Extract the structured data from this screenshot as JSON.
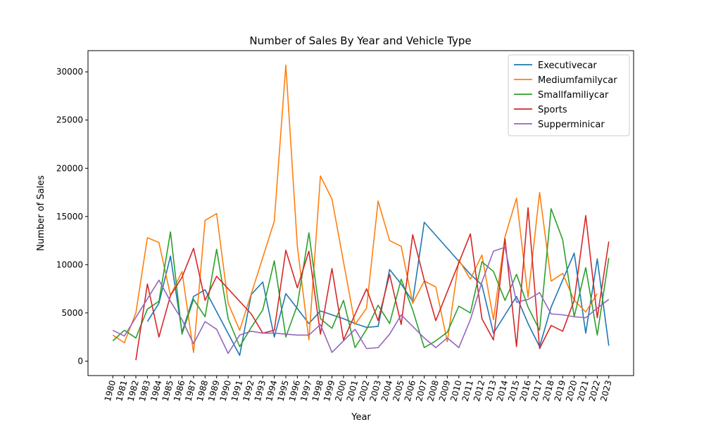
{
  "chart_data": {
    "type": "line",
    "title": "Number of Sales By Year and Vehicle Type",
    "xlabel": "Year",
    "ylabel": "Number of Sales",
    "ylim": [
      -1500,
      32200
    ],
    "yticks": [
      0,
      5000,
      10000,
      15000,
      20000,
      25000,
      30000
    ],
    "legend_position": "top-right",
    "grid": false,
    "x": [
      1980,
      1981,
      1982,
      1983,
      1984,
      1985,
      1986,
      1987,
      1988,
      1989,
      1990,
      1991,
      1992,
      1993,
      1994,
      1995,
      1996,
      1997,
      1998,
      1999,
      2000,
      2001,
      2002,
      2003,
      2004,
      2005,
      2006,
      2007,
      2008,
      2009,
      2010,
      2011,
      2012,
      2013,
      2014,
      2015,
      2016,
      2017,
      2018,
      2019,
      2020,
      2021,
      2022,
      2023
    ],
    "series": [
      {
        "name": "Executivecar",
        "color": "#1f77b4",
        "x": [
          1983,
          1984,
          1985,
          1986,
          1987,
          1988,
          1991,
          1992,
          1993,
          1994,
          1995,
          1997,
          1998,
          1999,
          2000,
          2001,
          2002,
          2003,
          2004,
          2005,
          2006,
          2007,
          2011,
          2012,
          2013,
          2014,
          2015,
          2016,
          2017,
          2018,
          2020,
          2021,
          2022,
          2023
        ],
        "values": [
          4100,
          6000,
          10900,
          3000,
          6700,
          7400,
          600,
          6900,
          8200,
          2500,
          7000,
          3900,
          5200,
          4800,
          4400,
          3900,
          3500,
          3600,
          9500,
          8000,
          6200,
          14400,
          9000,
          7900,
          2900,
          4800,
          6700,
          3900,
          1500,
          5600,
          11200,
          2900,
          10600,
          1600
        ]
      },
      {
        "name": "Mediumfamilycar",
        "color": "#ff7f0e",
        "x": [
          1980,
          1981,
          1982,
          1983,
          1984,
          1985,
          1986,
          1987,
          1988,
          1989,
          1990,
          1991,
          1994,
          1995,
          1996,
          1997,
          1998,
          1999,
          2001,
          2002,
          2003,
          2004,
          2005,
          2006,
          2007,
          2008,
          2009,
          2010,
          2011,
          2012,
          2013,
          2014,
          2015,
          2016,
          2017,
          2018,
          2019,
          2020,
          2021,
          2022
        ],
        "values": [
          2700,
          1900,
          5000,
          12800,
          12300,
          6800,
          9300,
          900,
          14600,
          15300,
          6000,
          3200,
          14500,
          30700,
          11900,
          2200,
          19200,
          16800,
          3800,
          5500,
          16600,
          12500,
          11900,
          6000,
          8300,
          7700,
          2000,
          10500,
          8500,
          11000,
          4300,
          12900,
          16900,
          6600,
          17500,
          8300,
          9100,
          6300,
          5100,
          7000
        ]
      },
      {
        "name": "Smallfamiliycar",
        "color": "#2ca02c",
        "x": [
          1980,
          1981,
          1982,
          1983,
          1984,
          1985,
          1986,
          1987,
          1988,
          1989,
          1990,
          1991,
          1992,
          1993,
          1994,
          1995,
          1996,
          1997,
          1998,
          1999,
          2000,
          2001,
          2002,
          2003,
          2004,
          2005,
          2006,
          2007,
          2008,
          2009,
          2010,
          2011,
          2012,
          2013,
          2014,
          2015,
          2016,
          2017,
          2018,
          2019,
          2020,
          2021,
          2022,
          2023
        ],
        "values": [
          2100,
          3200,
          2400,
          5400,
          6200,
          13400,
          2800,
          6400,
          4600,
          11600,
          4400,
          1500,
          3500,
          5300,
          10400,
          2500,
          5800,
          13300,
          4400,
          3400,
          6300,
          1400,
          3300,
          5800,
          3900,
          8500,
          5300,
          1400,
          2100,
          3000,
          5700,
          5000,
          10300,
          9300,
          6300,
          9000,
          5600,
          3200,
          15800,
          12600,
          4600,
          9700,
          2700,
          10700
        ]
      },
      {
        "name": "Sports",
        "color": "#d62728",
        "x": [
          1982,
          1983,
          1984,
          1985,
          1986,
          1987,
          1988,
          1989,
          1992,
          1993,
          1994,
          1995,
          1996,
          1997,
          1998,
          1999,
          2000,
          2002,
          2003,
          2004,
          2005,
          2006,
          2007,
          2008,
          2011,
          2012,
          2013,
          2014,
          2015,
          2016,
          2017,
          2018,
          2019,
          2020,
          2021,
          2022,
          2023
        ],
        "values": [
          100,
          8000,
          2500,
          6800,
          8700,
          11700,
          6300,
          8800,
          4900,
          2900,
          3200,
          11500,
          7600,
          11400,
          2800,
          9600,
          2200,
          7500,
          4200,
          9000,
          3800,
          13100,
          8400,
          4200,
          13200,
          4400,
          2200,
          12700,
          1500,
          15900,
          1300,
          3700,
          3100,
          6300,
          15100,
          4500,
          12400
        ]
      },
      {
        "name": "Supperminicar",
        "color": "#9467bd",
        "x": [
          1980,
          1981,
          1984,
          1985,
          1986,
          1987,
          1988,
          1989,
          1990,
          1991,
          1992,
          1993,
          1994,
          1995,
          1996,
          1997,
          1998,
          1999,
          2000,
          2001,
          2002,
          2003,
          2004,
          2005,
          2006,
          2007,
          2008,
          2009,
          2010,
          2011,
          2012,
          2013,
          2014,
          2015,
          2016,
          2017,
          2018,
          2019,
          2020,
          2021,
          2022,
          2023
        ],
        "values": [
          3200,
          2600,
          8400,
          6200,
          4300,
          1800,
          4100,
          3300,
          800,
          2700,
          3100,
          2900,
          2900,
          2800,
          2700,
          2700,
          3800,
          900,
          2100,
          3300,
          1300,
          1400,
          2800,
          4800,
          3600,
          2400,
          1400,
          2400,
          1400,
          4300,
          8200,
          11400,
          11800,
          6100,
          6400,
          7100,
          4900,
          4800,
          4600,
          4500,
          5500,
          6400
        ]
      }
    ]
  }
}
